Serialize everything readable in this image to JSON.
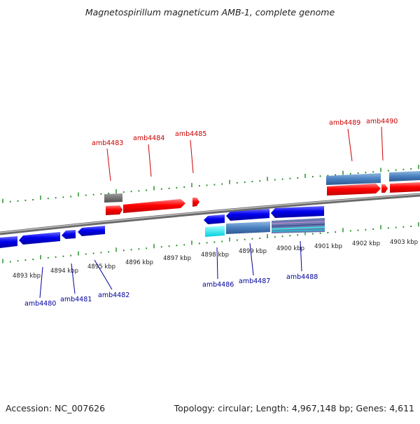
{
  "title": "Magnetospirillum magneticum AMB-1, complete genome",
  "footer": {
    "accession": "Accession: NC_007626",
    "summary": "Topology: circular; Length: 4,967,148 bp; Genes: 4,611"
  },
  "colors": {
    "forward_gene": "#ff0000",
    "reverse_gene": "#0000ee",
    "forward_label": "#cc0000",
    "reverse_label": "#000099",
    "rna_gene": "#4a80c0",
    "tick": "#1a8a1a",
    "backbone": "#808080"
  },
  "scale_labels": [
    "4893 kbp",
    "4894 kbp",
    "4895 kbp",
    "4896 kbp",
    "4897 kbp",
    "4898 kbp",
    "4899 kbp",
    "4900 kbp",
    "4901 kbp",
    "4902 kbp",
    "4903 kbp"
  ],
  "forward_gene_labels": [
    "amb4483",
    "amb4484",
    "amb4485",
    "amb4489",
    "amb4490"
  ],
  "reverse_gene_labels": [
    "amb4480",
    "amb4481",
    "amb4482",
    "amb4486",
    "amb4487",
    "amb4488"
  ]
}
